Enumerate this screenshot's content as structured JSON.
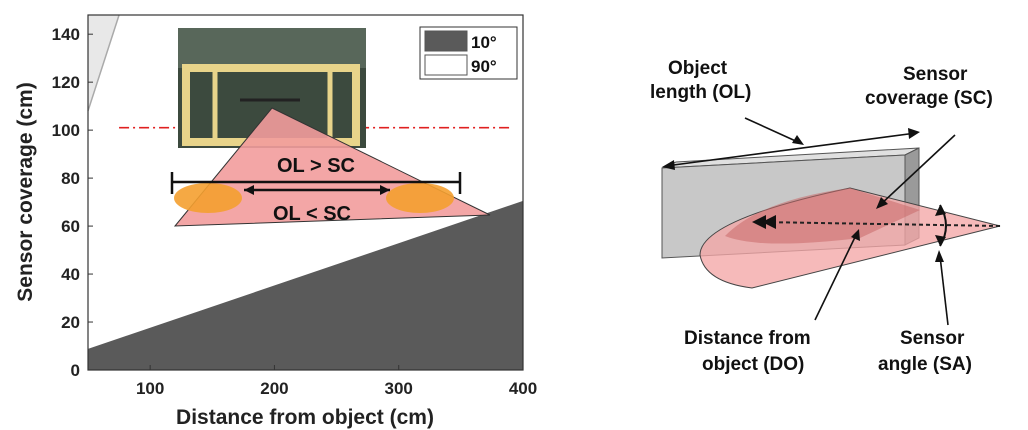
{
  "chart_data": {
    "type": "area",
    "xlabel": "Distance from object (cm)",
    "ylabel": "Sensor coverage (cm)",
    "xlim": [
      50,
      400
    ],
    "ylim": [
      0,
      148
    ],
    "x_ticks": [
      100,
      200,
      300,
      400
    ],
    "y_ticks": [
      0,
      20,
      40,
      60,
      80,
      100,
      120,
      140
    ],
    "series": [
      {
        "name": "10°",
        "x": [
          50,
          400
        ],
        "values": [
          8.8,
          70.5
        ],
        "color": "#5a5a5a"
      },
      {
        "name": "90°",
        "x": [
          50,
          75
        ],
        "values": [
          108,
          148
        ],
        "color": "#ffffff"
      }
    ],
    "reference_line": {
      "y": 101,
      "color": "#e02020",
      "style": "dash-dot"
    },
    "legend": {
      "position": "top-right",
      "entries": [
        "10°",
        "90°"
      ]
    },
    "inset_annotations": [
      "OL > SC",
      "OL < SC"
    ]
  },
  "diagram": {
    "labels": {
      "object_length": [
        "Object",
        "length (OL)"
      ],
      "sensor_coverage": [
        "Sensor",
        "coverage (SC)"
      ],
      "distance": [
        "Distance from",
        "object (DO)"
      ],
      "sensor_angle": [
        "Sensor",
        "angle (SA)"
      ]
    },
    "colors": {
      "cone": "#f4a6a6",
      "panel": "#c8c8c8"
    }
  }
}
